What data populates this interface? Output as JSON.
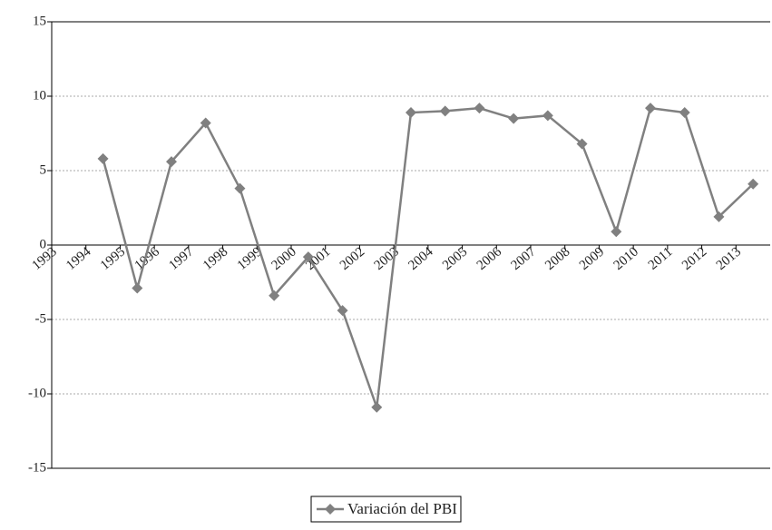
{
  "chart_data": {
    "type": "line",
    "categories": [
      "1993",
      "1994",
      "1995",
      "1996",
      "1997",
      "1998",
      "1999",
      "2000",
      "2001",
      "2002",
      "2003",
      "2004",
      "2005",
      "2006",
      "2007",
      "2008",
      "2009",
      "2010",
      "2011",
      "2012",
      "2013"
    ],
    "series": [
      {
        "name": "Variación del PBI",
        "color": "#808080",
        "values": [
          null,
          5.8,
          -2.9,
          5.6,
          8.2,
          3.8,
          -3.4,
          -0.8,
          -4.4,
          -10.9,
          8.9,
          9.0,
          9.2,
          8.5,
          8.7,
          6.8,
          0.9,
          9.2,
          8.9,
          1.9,
          4.1
        ]
      }
    ],
    "ylim": [
      -15,
      15
    ],
    "yticks": [
      -15,
      -10,
      -5,
      0,
      5,
      10,
      15
    ],
    "grid": true,
    "legend": "bottom"
  }
}
